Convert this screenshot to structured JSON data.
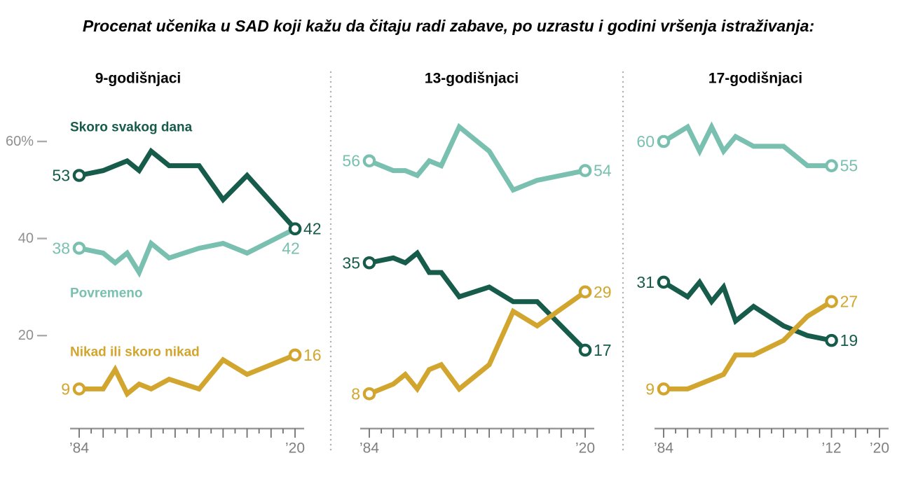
{
  "title": "Procenat učenika u SAD koji kažu da čitaju radi zabave, po uzrastu i godini vršenja istraživanja:",
  "colors": {
    "almost_daily": "#175b4b",
    "sometimes": "#7ac0b0",
    "never": "#d2a62e",
    "axis_line": "#9a9a9a",
    "tick": "#707070",
    "x_label": "#7f7f7f",
    "y_label": "#8f8f8f",
    "y_dash": "#ababab",
    "separator": "#b0b0b0",
    "heading": "#000000"
  },
  "y_axis": {
    "labels": [
      {
        "text": "60%",
        "value": 60
      },
      {
        "text": "40",
        "value": 40
      },
      {
        "text": "20",
        "value": 20
      }
    ]
  },
  "legend": {
    "items": [
      {
        "text": "Skoro svakog dana",
        "color_key": "almost_daily"
      },
      {
        "text": "Povremeno",
        "color_key": "sometimes"
      },
      {
        "text": "Nikad ili skoro nikad",
        "color_key": "never"
      }
    ]
  },
  "chart_data": [
    {
      "type": "line",
      "title": "9-godišnjaci",
      "x_axis": {
        "range": [
          1984,
          2020
        ],
        "tick_step": 2,
        "labeled_years": [
          1984,
          2020
        ],
        "labels": [
          "’84",
          "’20"
        ]
      },
      "years": [
        1984,
        1988,
        1990,
        1992,
        1994,
        1996,
        1999,
        2004,
        2008,
        2012,
        2020
      ],
      "series": [
        {
          "name": "Povremeno",
          "color_key": "sometimes",
          "values": [
            38,
            37,
            35,
            37,
            33,
            39,
            36,
            38,
            39,
            37,
            42
          ],
          "start_label": "38",
          "end_label": "42",
          "end_label_below": true
        },
        {
          "name": "Skoro svakog dana",
          "color_key": "almost_daily",
          "values": [
            53,
            54,
            55,
            56,
            54,
            58,
            55,
            55,
            48,
            53,
            42
          ],
          "start_label": "53",
          "end_label": "42"
        },
        {
          "name": "Nikad ili skoro nikad",
          "color_key": "never",
          "values": [
            9,
            9,
            13,
            8,
            10,
            9,
            11,
            9,
            15,
            12,
            16
          ],
          "start_label": "9",
          "end_label": "16"
        }
      ]
    },
    {
      "type": "line",
      "title": "13-godišnjaci",
      "x_axis": {
        "range": [
          1984,
          2020
        ],
        "tick_step": 2,
        "labeled_years": [
          1984,
          2020
        ],
        "labels": [
          "’84",
          "’20"
        ]
      },
      "years": [
        1984,
        1988,
        1990,
        1992,
        1994,
        1996,
        1999,
        2004,
        2008,
        2012,
        2020
      ],
      "series": [
        {
          "name": "Povremeno",
          "color_key": "sometimes",
          "values": [
            56,
            54,
            54,
            53,
            56,
            55,
            63,
            58,
            50,
            52,
            54
          ],
          "start_label": "56",
          "end_label": "54"
        },
        {
          "name": "Skoro svakog dana",
          "color_key": "almost_daily",
          "values": [
            35,
            36,
            35,
            37,
            33,
            33,
            28,
            30,
            27,
            27,
            17
          ],
          "start_label": "35",
          "end_label": "17"
        },
        {
          "name": "Nikad ili skoro nikad",
          "color_key": "never",
          "values": [
            8,
            10,
            12,
            9,
            13,
            14,
            9,
            14,
            25,
            22,
            29
          ],
          "start_label": "8",
          "end_label": "29"
        }
      ]
    },
    {
      "type": "line",
      "title": "17-godišnjaci",
      "x_axis": {
        "range": [
          1984,
          2020
        ],
        "tick_step": 2,
        "labeled_years": [
          1984,
          2012,
          2020
        ],
        "labels": [
          "’84",
          "’12",
          "’20"
        ]
      },
      "years": [
        1984,
        1988,
        1990,
        1992,
        1994,
        1996,
        1999,
        2004,
        2008,
        2012
      ],
      "series": [
        {
          "name": "Povremeno",
          "color_key": "sometimes",
          "values": [
            60,
            63,
            58,
            63,
            58,
            61,
            59,
            59,
            55,
            55
          ],
          "start_label": "60",
          "end_label": "55"
        },
        {
          "name": "Skoro svakog dana",
          "color_key": "almost_daily",
          "values": [
            31,
            28,
            31,
            27,
            30,
            23,
            26,
            22,
            20,
            19
          ],
          "start_label": "31",
          "end_label": "19"
        },
        {
          "name": "Nikad ili skoro nikad",
          "color_key": "never",
          "values": [
            9,
            9,
            10,
            11,
            12,
            16,
            16,
            19,
            24,
            27
          ],
          "start_label": "9",
          "end_label": "27"
        }
      ]
    }
  ]
}
